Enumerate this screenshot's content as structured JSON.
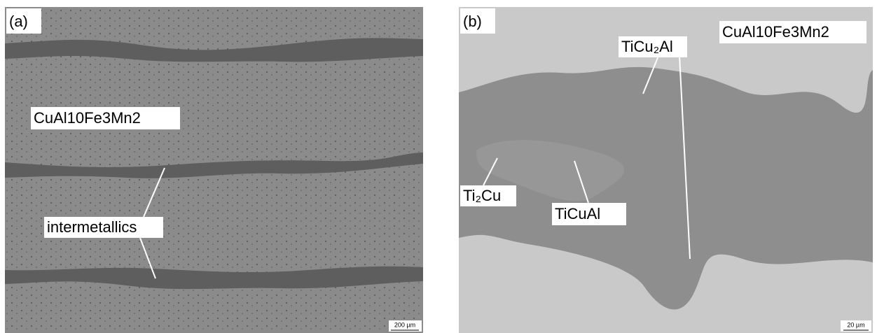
{
  "panels": [
    {
      "label": "(a)",
      "annotations": [
        "CuAl10Fe3Mn2",
        "intermetallics"
      ],
      "scale_bar": "200 µm"
    },
    {
      "label": "(b)",
      "annotations": [
        "CuAl10Fe3Mn2",
        "TiCu₂Al",
        "Ti₂Cu",
        "TiCuAl"
      ],
      "scale_bar": "20 µm"
    }
  ]
}
